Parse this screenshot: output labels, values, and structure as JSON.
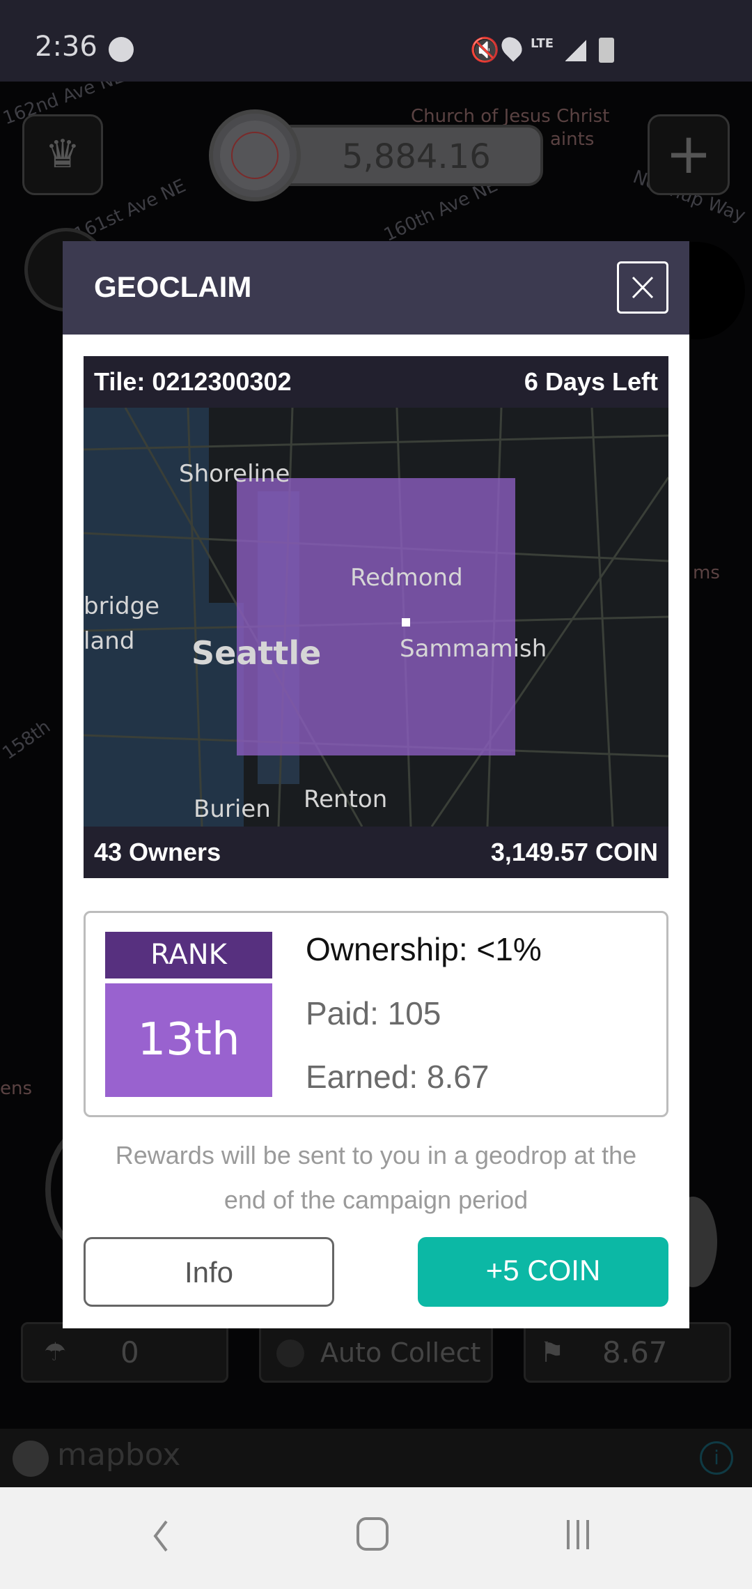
{
  "status_bar": {
    "time": "2:36",
    "network": "LTE"
  },
  "map_background": {
    "balance": "5,884.16",
    "street_labels": [
      "162nd Ave NE",
      "161st Ave NE",
      "160th Ave NE",
      "Church of Jesus Christ",
      "aints",
      "Northup Way",
      "ms",
      "158th",
      "ens"
    ],
    "bottom_buttons": {
      "drops": "0",
      "auto_collect": "Auto Collect",
      "flags": "8.67"
    },
    "mapbox_logo": "mapbox"
  },
  "modal": {
    "title": "GEOCLAIM",
    "tile": "Tile: 0212300302",
    "days_left": "6 Days Left",
    "owners": "43 Owners",
    "coin_total": "3,149.57 COIN",
    "map_labels": {
      "shoreline": "Shoreline",
      "redmond": "Redmond",
      "seattle": "Seattle",
      "sammamish": "Sammamish",
      "bridge": "bridge",
      "land": "land",
      "burien": "Burien",
      "renton": "Renton"
    },
    "rank_label": "RANK",
    "rank_value": "13th",
    "ownership": "Ownership: <1%",
    "paid": "Paid: 105",
    "earned": "Earned: 8.67",
    "rewards_line1": "Rewards will be sent to you in a geodrop at the",
    "rewards_line2": "end of the campaign period",
    "info_button": "Info",
    "coin_button": "+5 COIN"
  },
  "colors": {
    "accent": "#0cb8a5",
    "rank_header": "#57307f",
    "rank_value": "#9962cf",
    "tile_overlay": "#8e5fc4"
  }
}
